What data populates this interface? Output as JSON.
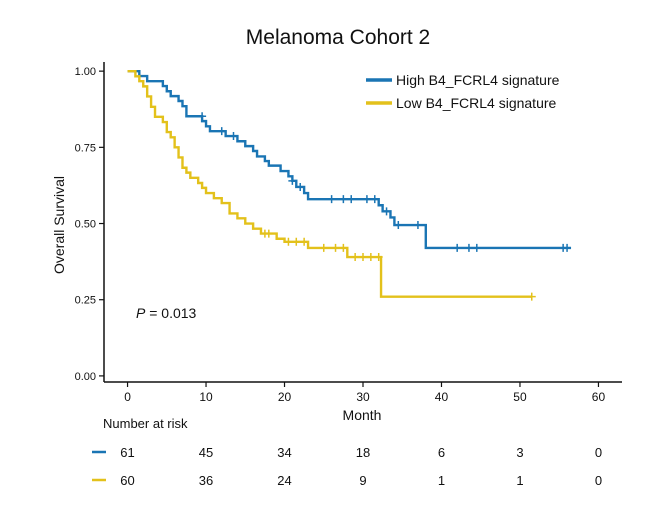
{
  "chart_data": {
    "type": "line",
    "subtype": "kaplan-meier",
    "title": "Melanoma Cohort 2",
    "xlabel": "Month",
    "ylabel": "Overall Survival",
    "xlim": [
      -3,
      63
    ],
    "ylim": [
      -0.02,
      1.03
    ],
    "x_ticks": [
      0,
      10,
      20,
      30,
      40,
      50,
      60
    ],
    "x_tick_labels": [
      "0",
      "10",
      "20",
      "30",
      "40",
      "50",
      "60"
    ],
    "y_ticks": [
      0,
      0.25,
      0.5,
      0.75,
      1.0
    ],
    "y_tick_labels": [
      "0.00",
      "0.25",
      "0.50",
      "0.75",
      "1.00"
    ],
    "legend_position": "top-right",
    "annotation": {
      "p_label": "P",
      "p_value": " = 0.013",
      "x": 1,
      "y": 0.2
    },
    "series": [
      {
        "name": "High B4_FCRL4 signature",
        "color": "#1a75b4",
        "steps": [
          [
            0,
            1.0
          ],
          [
            1.5,
            0.984
          ],
          [
            2.5,
            0.967
          ],
          [
            4.5,
            0.951
          ],
          [
            5,
            0.934
          ],
          [
            5.5,
            0.918
          ],
          [
            6.5,
            0.902
          ],
          [
            7,
            0.885
          ],
          [
            7.5,
            0.852
          ],
          [
            9.5,
            0.836
          ],
          [
            10,
            0.819
          ],
          [
            10.5,
            0.803
          ],
          [
            12.5,
            0.787
          ],
          [
            14,
            0.77
          ],
          [
            15,
            0.754
          ],
          [
            16,
            0.738
          ],
          [
            16.5,
            0.72
          ],
          [
            17.5,
            0.705
          ],
          [
            18,
            0.69
          ],
          [
            19.5,
            0.672
          ],
          [
            20.5,
            0.655
          ],
          [
            21,
            0.64
          ],
          [
            21.5,
            0.62
          ],
          [
            22.5,
            0.6
          ],
          [
            23,
            0.58
          ],
          [
            32,
            0.56
          ],
          [
            32.5,
            0.54
          ],
          [
            33.5,
            0.52
          ],
          [
            34,
            0.495
          ],
          [
            38,
            0.42
          ],
          [
            56.5,
            0.42
          ]
        ],
        "censored": [
          [
            9.5,
            0.852
          ],
          [
            12,
            0.803
          ],
          [
            13.5,
            0.787
          ],
          [
            21,
            0.64
          ],
          [
            22,
            0.62
          ],
          [
            26,
            0.58
          ],
          [
            27.5,
            0.58
          ],
          [
            28.5,
            0.58
          ],
          [
            30.5,
            0.58
          ],
          [
            31.5,
            0.58
          ],
          [
            33,
            0.54
          ],
          [
            34.5,
            0.495
          ],
          [
            37,
            0.495
          ],
          [
            42,
            0.42
          ],
          [
            43.5,
            0.42
          ],
          [
            44.5,
            0.42
          ],
          [
            55.5,
            0.42
          ],
          [
            56,
            0.42
          ]
        ]
      },
      {
        "name": "Low B4_FCRL4 signature",
        "color": "#e3c11b",
        "steps": [
          [
            0,
            1.0
          ],
          [
            1,
            0.983
          ],
          [
            1.5,
            0.967
          ],
          [
            2,
            0.95
          ],
          [
            2.5,
            0.917
          ],
          [
            3,
            0.883
          ],
          [
            3.5,
            0.85
          ],
          [
            4.5,
            0.833
          ],
          [
            5,
            0.8
          ],
          [
            5.5,
            0.783
          ],
          [
            6,
            0.75
          ],
          [
            6.5,
            0.717
          ],
          [
            7,
            0.683
          ],
          [
            7.5,
            0.667
          ],
          [
            8,
            0.65
          ],
          [
            9,
            0.633
          ],
          [
            9.5,
            0.617
          ],
          [
            10,
            0.6
          ],
          [
            11,
            0.583
          ],
          [
            12,
            0.567
          ],
          [
            13,
            0.533
          ],
          [
            14,
            0.517
          ],
          [
            15,
            0.5
          ],
          [
            16,
            0.483
          ],
          [
            17,
            0.467
          ],
          [
            19,
            0.45
          ],
          [
            20,
            0.44
          ],
          [
            23,
            0.42
          ],
          [
            28,
            0.39
          ],
          [
            32.3,
            0.26
          ],
          [
            51.5,
            0.26
          ]
        ],
        "censored": [
          [
            17.5,
            0.467
          ],
          [
            18,
            0.467
          ],
          [
            20.5,
            0.44
          ],
          [
            21.5,
            0.44
          ],
          [
            22.5,
            0.44
          ],
          [
            25,
            0.42
          ],
          [
            26.5,
            0.42
          ],
          [
            27.5,
            0.42
          ],
          [
            29,
            0.39
          ],
          [
            30,
            0.39
          ],
          [
            31,
            0.39
          ],
          [
            32,
            0.39
          ],
          [
            51.5,
            0.26
          ]
        ]
      }
    ]
  },
  "risk_table": {
    "title": "Number at risk",
    "timepoints": [
      0,
      10,
      20,
      30,
      40,
      50,
      60
    ],
    "rows": [
      {
        "name": "High B4_FCRL4 signature",
        "color": "#1a75b4",
        "counts": [
          "61",
          "45",
          "34",
          "18",
          "6",
          "3",
          "0"
        ]
      },
      {
        "name": "Low B4_FCRL4 signature",
        "color": "#e3c11b",
        "counts": [
          "60",
          "36",
          "24",
          "9",
          "1",
          "1",
          "0"
        ]
      }
    ]
  }
}
